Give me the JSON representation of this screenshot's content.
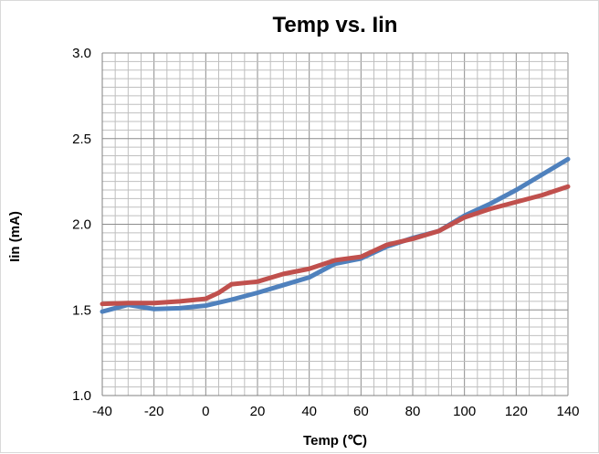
{
  "chart_data": {
    "type": "line",
    "title": "Temp vs. Iin",
    "xlabel": "Temp (℃)",
    "ylabel": "Iin (mA)",
    "xlim": [
      -40,
      140
    ],
    "ylim": [
      1.0,
      3.0
    ],
    "xticks": [
      -40,
      -20,
      0,
      20,
      40,
      60,
      80,
      100,
      120,
      140
    ],
    "yticks": [
      1.0,
      1.5,
      2.0,
      2.5,
      3.0
    ],
    "ytick_labels": [
      "1.0",
      "1.5",
      "2.0",
      "2.5",
      "3.0"
    ],
    "grid": true,
    "legend": "none",
    "series": [
      {
        "color": "#4f81bd",
        "x": [
          -40,
          -30,
          -20,
          -10,
          0,
          10,
          20,
          30,
          40,
          50,
          60,
          70,
          80,
          90,
          100,
          110,
          120,
          130,
          140
        ],
        "y": [
          1.49,
          1.53,
          1.505,
          1.51,
          1.525,
          1.56,
          1.6,
          1.645,
          1.69,
          1.77,
          1.8,
          1.87,
          1.92,
          1.96,
          2.05,
          2.12,
          2.2,
          2.29,
          2.38
        ]
      },
      {
        "color": "#c0504d",
        "x": [
          -40,
          -30,
          -20,
          -10,
          0,
          5,
          10,
          20,
          30,
          40,
          50,
          60,
          70,
          80,
          90,
          100,
          110,
          120,
          130,
          140
        ],
        "y": [
          1.535,
          1.54,
          1.54,
          1.55,
          1.565,
          1.6,
          1.65,
          1.665,
          1.71,
          1.74,
          1.79,
          1.81,
          1.88,
          1.915,
          1.96,
          2.04,
          2.09,
          2.13,
          2.17,
          2.22
        ]
      }
    ]
  }
}
